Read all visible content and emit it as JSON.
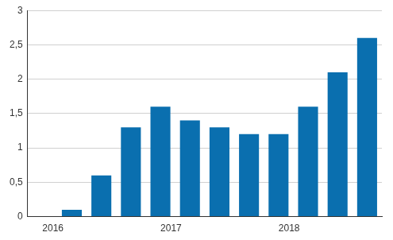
{
  "chart_data": {
    "type": "bar",
    "categories": [
      "2016",
      null,
      null,
      null,
      "2017",
      null,
      null,
      null,
      "2018",
      null,
      null,
      null
    ],
    "values": [
      0,
      0.1,
      0.6,
      1.3,
      1.6,
      1.4,
      1.3,
      1.2,
      1.2,
      1.6,
      2.1,
      2.6
    ],
    "color": "#0a6faf",
    "ylim": [
      0,
      3
    ],
    "yticks": [
      0,
      {
        "value": 0.5,
        "label": "0,5"
      },
      1,
      {
        "value": 1.5,
        "label": "1,5"
      },
      2,
      {
        "value": 2.5,
        "label": "2,5"
      },
      3
    ],
    "grid": true
  }
}
